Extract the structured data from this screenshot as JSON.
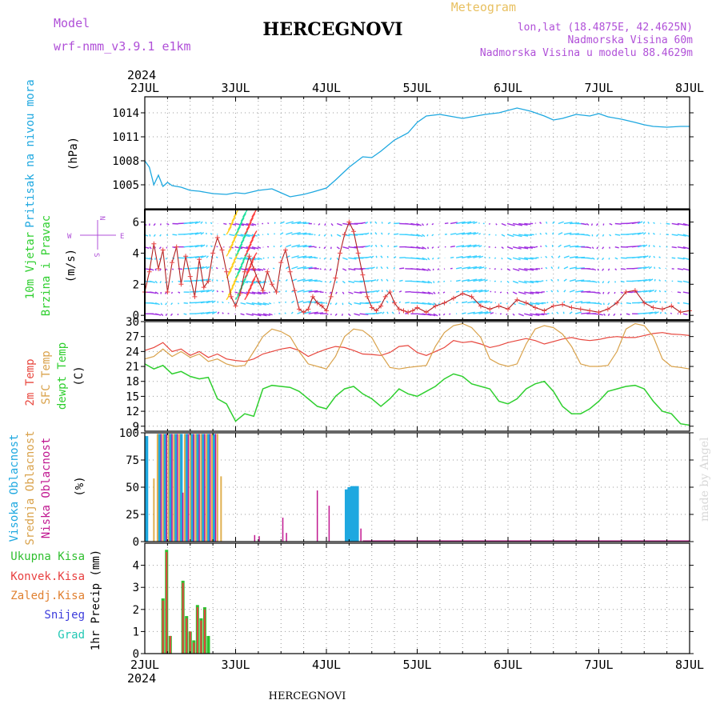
{
  "header": {
    "model_label": "Model",
    "model_name": "wrf-nmm_v3.9.1 e1km",
    "station": "HERCEGNOVI",
    "meteogram": "Meteogram",
    "lonlat": "lon,lat (18.4875E, 42.4625N)",
    "elevation": "Nadmorska Visina 60m",
    "model_elevation": "Nadmorska Visina u modelu 88.4629m",
    "footer_station": "HERCEGNOVI",
    "credit": "made by Angel"
  },
  "colors": {
    "pressure": "#1ea8e0",
    "temp2m": "#e8473e",
    "sfctemp": "#d9a24b",
    "dewpt": "#2fcf2f",
    "high_cloud": "#1ea8e0",
    "mid_cloud": "#e0b050",
    "low_cloud": "#c01890",
    "total_precip": "#2fbf2f",
    "conv_precip": "#e84040",
    "frz_precip": "#e08030",
    "snow": "#3c3cdc",
    "hail": "#22c8b4",
    "header_purple": "#b050d8",
    "meteogram_gold": "#e8c060"
  },
  "chart_data": [
    {
      "type": "line",
      "panel": "pressure",
      "ylabel": [
        "Pritisak na nivou mora",
        "(hPa)"
      ],
      "ylim": [
        1002,
        1016
      ],
      "yticks": [
        1005,
        1008,
        1011,
        1014
      ],
      "xlim": [
        0,
        6
      ],
      "x_unit": "days since 2JUL 2024 00UTC",
      "xtick_labels": [
        "2JUL",
        "3JUL",
        "4JUL",
        "5JUL",
        "6JUL",
        "7JUL",
        "8JUL"
      ],
      "year_label": "2024",
      "series": [
        {
          "name": "MSLP",
          "x": [
            0,
            0.05,
            0.1,
            0.15,
            0.2,
            0.25,
            0.3,
            0.4,
            0.5,
            0.6,
            0.75,
            0.9,
            1.0,
            1.1,
            1.25,
            1.4,
            1.5,
            1.6,
            1.75,
            1.85,
            2.0,
            2.1,
            2.25,
            2.4,
            2.5,
            2.6,
            2.75,
            2.9,
            3.0,
            3.1,
            3.25,
            3.4,
            3.5,
            3.6,
            3.75,
            3.9,
            4.0,
            4.1,
            4.25,
            4.4,
            4.5,
            4.6,
            4.75,
            4.9,
            5.0,
            5.1,
            5.25,
            5.4,
            5.5,
            5.6,
            5.75,
            5.9,
            6.0
          ],
          "values": [
            1008.0,
            1007.2,
            1005.0,
            1006.2,
            1004.8,
            1005.3,
            1004.9,
            1004.7,
            1004.3,
            1004.2,
            1003.9,
            1003.8,
            1004.0,
            1003.9,
            1004.3,
            1004.5,
            1004.0,
            1003.5,
            1003.8,
            1004.1,
            1004.6,
            1005.6,
            1007.2,
            1008.5,
            1008.4,
            1009.2,
            1010.6,
            1011.5,
            1012.8,
            1013.6,
            1013.8,
            1013.5,
            1013.3,
            1013.5,
            1013.8,
            1014.0,
            1014.3,
            1014.6,
            1014.2,
            1013.6,
            1013.1,
            1013.3,
            1013.8,
            1013.6,
            1013.9,
            1013.5,
            1013.2,
            1012.8,
            1012.5,
            1012.3,
            1012.2,
            1012.3,
            1012.3
          ]
        }
      ]
    },
    {
      "type": "line",
      "panel": "wind",
      "ylabel": [
        "10m Vjetar",
        "Brzina i Pravac",
        "(m/s)"
      ],
      "ylim": [
        -0.3,
        6.8
      ],
      "yticks": [
        0,
        2,
        4,
        6
      ],
      "xlim": [
        0,
        6
      ],
      "compass": {
        "n": "N",
        "s": "S",
        "e": "E",
        "w": "W"
      },
      "series": [
        {
          "name": "wind speed",
          "x": [
            0,
            0.05,
            0.1,
            0.15,
            0.2,
            0.25,
            0.3,
            0.35,
            0.4,
            0.45,
            0.5,
            0.55,
            0.6,
            0.65,
            0.7,
            0.75,
            0.8,
            0.85,
            0.9,
            0.95,
            1.0,
            1.05,
            1.1,
            1.15,
            1.2,
            1.25,
            1.3,
            1.35,
            1.4,
            1.45,
            1.5,
            1.55,
            1.6,
            1.65,
            1.7,
            1.75,
            1.8,
            1.85,
            1.9,
            1.95,
            2.0,
            2.05,
            2.1,
            2.15,
            2.2,
            2.25,
            2.3,
            2.35,
            2.4,
            2.45,
            2.5,
            2.55,
            2.6,
            2.65,
            2.7,
            2.75,
            2.8,
            2.85,
            2.9,
            2.95,
            3.0,
            3.1,
            3.2,
            3.3,
            3.4,
            3.5,
            3.6,
            3.7,
            3.8,
            3.9,
            4.0,
            4.1,
            4.2,
            4.3,
            4.4,
            4.5,
            4.6,
            4.7,
            4.8,
            4.9,
            5.0,
            5.1,
            5.2,
            5.3,
            5.4,
            5.5,
            5.6,
            5.7,
            5.8,
            5.9,
            6.0
          ],
          "values": [
            1.5,
            2.8,
            4.6,
            3.0,
            4.2,
            1.5,
            3.4,
            4.4,
            2.0,
            3.8,
            2.5,
            1.2,
            3.6,
            1.8,
            2.2,
            4.0,
            5.0,
            4.2,
            2.8,
            1.2,
            0.6,
            1.4,
            2.8,
            3.8,
            3.0,
            2.2,
            1.6,
            2.8,
            2.0,
            1.5,
            3.4,
            4.2,
            2.8,
            1.6,
            0.4,
            0.2,
            0.4,
            1.2,
            0.8,
            0.6,
            0.3,
            1.2,
            2.4,
            4.0,
            5.2,
            6.0,
            5.4,
            4.0,
            2.6,
            1.2,
            0.5,
            0.3,
            0.6,
            1.2,
            1.5,
            0.8,
            0.4,
            0.3,
            0.2,
            0.3,
            0.5,
            0.2,
            0.6,
            0.8,
            1.1,
            1.4,
            1.2,
            0.6,
            0.4,
            0.6,
            0.4,
            1.0,
            0.8,
            0.5,
            0.3,
            0.6,
            0.7,
            0.5,
            0.4,
            0.3,
            0.2,
            0.4,
            0.8,
            1.5,
            1.6,
            0.8,
            0.5,
            0.4,
            0.6,
            0.2,
            0.3
          ]
        }
      ]
    },
    {
      "type": "line",
      "panel": "temperature",
      "ylabel": [
        "2m Temp",
        "SFC Temp",
        "dewpt Temp",
        "(C)"
      ],
      "ylim": [
        8,
        30
      ],
      "yticks": [
        9,
        12,
        15,
        18,
        21,
        24,
        27,
        30
      ],
      "xlim": [
        0,
        6
      ],
      "series": [
        {
          "name": "2m Temp",
          "x": [
            0,
            0.1,
            0.2,
            0.3,
            0.4,
            0.5,
            0.6,
            0.7,
            0.8,
            0.9,
            1.0,
            1.1,
            1.2,
            1.3,
            1.4,
            1.5,
            1.6,
            1.7,
            1.8,
            1.9,
            2.0,
            2.1,
            2.2,
            2.3,
            2.4,
            2.5,
            2.6,
            2.7,
            2.8,
            2.9,
            3.0,
            3.1,
            3.2,
            3.3,
            3.4,
            3.5,
            3.6,
            3.7,
            3.8,
            3.9,
            4.0,
            4.1,
            4.2,
            4.3,
            4.4,
            4.5,
            4.6,
            4.7,
            4.8,
            4.9,
            5.0,
            5.1,
            5.2,
            5.3,
            5.4,
            5.5,
            5.6,
            5.7,
            5.8,
            5.9,
            6.0
          ],
          "values": [
            24.2,
            24.8,
            25.8,
            24.0,
            24.5,
            23.2,
            24.0,
            22.8,
            23.5,
            22.5,
            22.2,
            22.0,
            22.5,
            23.5,
            24.0,
            24.5,
            24.8,
            24.2,
            23.0,
            23.8,
            24.5,
            25.0,
            24.8,
            24.2,
            23.5,
            23.4,
            23.2,
            23.8,
            25.0,
            25.2,
            23.8,
            23.2,
            24.0,
            24.8,
            26.2,
            25.8,
            26.0,
            25.5,
            24.8,
            25.2,
            25.8,
            26.2,
            26.6,
            26.2,
            25.5,
            26.0,
            26.5,
            26.8,
            26.4,
            26.2,
            26.4,
            26.8,
            27.0,
            26.8,
            26.8,
            27.2,
            27.6,
            27.8,
            27.5,
            27.4,
            27.2
          ]
        },
        {
          "name": "SFC Temp",
          "x": [
            0,
            0.1,
            0.2,
            0.3,
            0.4,
            0.5,
            0.6,
            0.7,
            0.8,
            0.9,
            1.0,
            1.1,
            1.2,
            1.3,
            1.4,
            1.5,
            1.6,
            1.7,
            1.8,
            1.9,
            2.0,
            2.1,
            2.2,
            2.3,
            2.4,
            2.5,
            2.6,
            2.7,
            2.8,
            2.9,
            3.0,
            3.1,
            3.2,
            3.3,
            3.4,
            3.5,
            3.6,
            3.7,
            3.8,
            3.9,
            4.0,
            4.1,
            4.2,
            4.3,
            4.4,
            4.5,
            4.6,
            4.7,
            4.8,
            4.9,
            5.0,
            5.1,
            5.2,
            5.3,
            5.4,
            5.5,
            5.6,
            5.7,
            5.8,
            5.9,
            6.0
          ],
          "values": [
            22.5,
            23.0,
            24.5,
            23.0,
            24.0,
            22.8,
            23.5,
            22.0,
            22.5,
            21.5,
            21.0,
            21.2,
            24.0,
            27.0,
            28.5,
            28.0,
            27.0,
            24.0,
            21.5,
            21.0,
            20.5,
            23.0,
            27.0,
            28.5,
            28.2,
            26.8,
            23.5,
            20.8,
            20.5,
            20.8,
            21.0,
            21.2,
            25.0,
            27.8,
            29.2,
            29.6,
            28.8,
            26.8,
            22.5,
            21.5,
            21.0,
            21.5,
            25.5,
            28.5,
            29.2,
            28.8,
            27.5,
            25.0,
            21.5,
            21.0,
            21.0,
            21.2,
            24.0,
            28.5,
            29.6,
            29.2,
            27.0,
            22.5,
            21.0,
            20.8,
            20.5
          ]
        },
        {
          "name": "dewpt Temp",
          "x": [
            0,
            0.1,
            0.2,
            0.3,
            0.4,
            0.5,
            0.6,
            0.7,
            0.8,
            0.9,
            1.0,
            1.1,
            1.2,
            1.3,
            1.4,
            1.5,
            1.6,
            1.7,
            1.8,
            1.9,
            2.0,
            2.1,
            2.2,
            2.3,
            2.4,
            2.5,
            2.6,
            2.7,
            2.8,
            2.9,
            3.0,
            3.1,
            3.2,
            3.3,
            3.4,
            3.5,
            3.6,
            3.7,
            3.8,
            3.9,
            4.0,
            4.1,
            4.2,
            4.3,
            4.4,
            4.5,
            4.6,
            4.7,
            4.8,
            4.9,
            5.0,
            5.1,
            5.2,
            5.3,
            5.4,
            5.5,
            5.6,
            5.7,
            5.8,
            5.9,
            6.0
          ],
          "values": [
            21.5,
            20.5,
            21.2,
            19.5,
            20.0,
            19.0,
            18.5,
            18.8,
            14.5,
            13.5,
            10.0,
            11.5,
            11.0,
            16.5,
            17.2,
            17.0,
            16.8,
            16.0,
            14.5,
            13.0,
            12.5,
            15.0,
            16.5,
            17.0,
            15.5,
            14.5,
            13.0,
            14.5,
            16.5,
            15.5,
            15.0,
            16.0,
            17.0,
            18.5,
            19.5,
            19.0,
            17.5,
            17.0,
            16.5,
            14.0,
            13.5,
            14.5,
            16.5,
            17.5,
            18.0,
            16.0,
            13.0,
            11.5,
            11.5,
            12.5,
            14.0,
            16.0,
            16.5,
            17.0,
            17.2,
            16.5,
            14.0,
            12.0,
            11.5,
            9.5,
            9.2
          ]
        }
      ]
    },
    {
      "type": "bar",
      "panel": "cloud",
      "ylabel": [
        "Visoka Oblacnost",
        "Srednja Oblacnost",
        "Niska Oblacnost",
        "(%)"
      ],
      "ylim": [
        0,
        100
      ],
      "yticks": [
        0,
        25,
        50,
        75,
        100
      ],
      "xlim": [
        0,
        6
      ],
      "series": [
        {
          "name": "Visoka Oblacnost",
          "x": [
            0.02,
            0.16,
            0.22,
            0.28,
            0.34,
            0.4,
            0.46,
            0.52,
            0.58,
            0.64,
            0.7,
            0.76,
            2.22,
            2.25,
            2.28,
            2.31,
            2.34
          ],
          "values": [
            97,
            99,
            99,
            99,
            99,
            99,
            99,
            99,
            99,
            99,
            99,
            99,
            48,
            50,
            51,
            51,
            51
          ]
        },
        {
          "name": "Srednja Oblacnost",
          "x": [
            0.1,
            0.14,
            0.2,
            0.26,
            0.32,
            0.38,
            0.44,
            0.5,
            0.56,
            0.62,
            0.68,
            0.74,
            0.8,
            0.84
          ],
          "values": [
            58,
            99,
            99,
            99,
            99,
            99,
            99,
            99,
            99,
            99,
            99,
            99,
            99,
            60
          ]
        },
        {
          "name": "Niska Oblacnost",
          "x": [
            0.18,
            0.24,
            0.3,
            0.36,
            0.42,
            0.48,
            0.54,
            0.6,
            0.66,
            0.72,
            0.78,
            1.21,
            1.26,
            1.52,
            1.56,
            1.9,
            2.03,
            2.38
          ],
          "values": [
            99,
            99,
            99,
            99,
            45,
            99,
            99,
            99,
            99,
            99,
            99,
            6,
            5,
            22,
            8,
            47,
            33,
            12
          ]
        }
      ]
    },
    {
      "type": "bar",
      "panel": "precip",
      "ylabel": [
        "1hr Precip (mm)"
      ],
      "legend": [
        "Ukupna Kisa",
        "Konvek.Kisa",
        "Zaledj.Kisa",
        "Snijeg",
        "Grad"
      ],
      "ylim": [
        0,
        5
      ],
      "yticks": [
        0,
        1,
        2,
        3,
        4
      ],
      "xlim": [
        0,
        6
      ],
      "series": [
        {
          "name": "Ukupna Kisa",
          "x": [
            0.2,
            0.24,
            0.28,
            0.42,
            0.46,
            0.5,
            0.54,
            0.58,
            0.62,
            0.66,
            0.7
          ],
          "values": [
            2.5,
            4.7,
            0.8,
            3.3,
            1.7,
            1.0,
            0.6,
            2.2,
            1.6,
            2.1,
            0.8
          ]
        },
        {
          "name": "Konvek.Kisa",
          "x": [
            0.2,
            0.24,
            0.28,
            0.42,
            0.46,
            0.5,
            0.54,
            0.58,
            0.62,
            0.66
          ],
          "values": [
            2.4,
            4.6,
            0.8,
            3.2,
            1.6,
            1.0,
            0.5,
            2.1,
            1.5,
            2.0
          ]
        }
      ]
    }
  ]
}
